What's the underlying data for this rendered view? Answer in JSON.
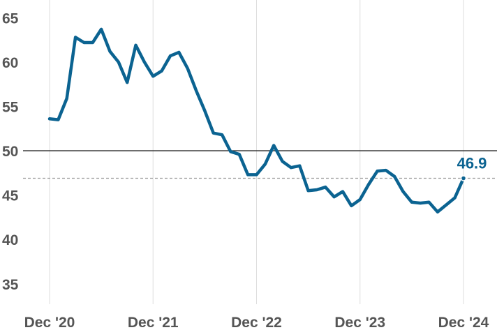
{
  "chart_data": {
    "type": "line",
    "title": "",
    "xlabel": "",
    "ylabel": "",
    "x_ticks": [
      "Dec '20",
      "Dec '21",
      "Dec '22",
      "Dec '23",
      "Dec '24"
    ],
    "y_ticks": [
      "35",
      "40",
      "45",
      "50",
      "55",
      "60",
      "65"
    ],
    "ylim": [
      32.7,
      67
    ],
    "xlim": [
      "Dec '20",
      "Dec '24"
    ],
    "reference_line": 50,
    "last_value_label": "46.9",
    "grid": "vertical",
    "series": [
      {
        "color": "#0b6391",
        "x": [
          "2020-12",
          "2021-01",
          "2021-02",
          "2021-03",
          "2021-04",
          "2021-05",
          "2021-06",
          "2021-07",
          "2021-08",
          "2021-09",
          "2021-10",
          "2021-11",
          "2021-12",
          "2022-01",
          "2022-02",
          "2022-03",
          "2022-04",
          "2022-05",
          "2022-06",
          "2022-07",
          "2022-08",
          "2022-09",
          "2022-10",
          "2022-11",
          "2022-12",
          "2023-01",
          "2023-02",
          "2023-03",
          "2023-04",
          "2023-05",
          "2023-06",
          "2023-07",
          "2023-08",
          "2023-09",
          "2023-10",
          "2023-11",
          "2023-12",
          "2024-01",
          "2024-02",
          "2024-03",
          "2024-04",
          "2024-05",
          "2024-06",
          "2024-07",
          "2024-08",
          "2024-09",
          "2024-10",
          "2024-11",
          "2024-12"
        ],
        "values": [
          53.6,
          53.5,
          55.9,
          62.8,
          62.2,
          62.2,
          63.7,
          61.2,
          60.0,
          57.7,
          61.9,
          60.0,
          58.4,
          59.0,
          60.7,
          61.1,
          59.3,
          56.8,
          54.5,
          52.0,
          51.8,
          49.9,
          49.6,
          47.3,
          47.3,
          48.5,
          50.6,
          48.8,
          48.1,
          48.3,
          45.5,
          45.6,
          45.9,
          44.8,
          45.4,
          43.8,
          44.5,
          46.2,
          47.7,
          47.8,
          47.1,
          45.4,
          44.2,
          44.1,
          44.2,
          43.1,
          43.9,
          44.7,
          46.9
        ]
      }
    ]
  }
}
